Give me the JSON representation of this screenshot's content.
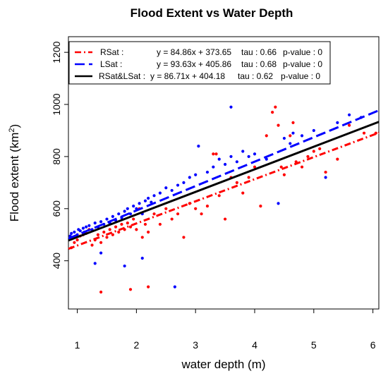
{
  "chart_data": {
    "type": "scatter",
    "title": "Flood Extent vs Water Depth",
    "xlabel": "water depth (m)",
    "ylabel_main": "Flood extent (km",
    "ylabel_sup": "2",
    "ylabel_close": ")",
    "xlim": [
      0.85,
      6.1
    ],
    "ylim": [
      215,
      1260
    ],
    "xticks": [
      1,
      2,
      3,
      4,
      5,
      6
    ],
    "yticks": [
      400,
      600,
      800,
      1000,
      1200
    ],
    "grid": false,
    "legend_position": "top-left",
    "series": [
      {
        "name": "RSat :",
        "color": "#ff0000",
        "line_style": "dash-dot",
        "equation": "y = 84.86x + 373.65",
        "tau": "tau : 0.66",
        "pvalue": "p-value : 0",
        "slope": 84.86,
        "intercept": 373.65,
        "points": [
          [
            0.9,
            450
          ],
          [
            0.95,
            470
          ],
          [
            1.0,
            480
          ],
          [
            1.05,
            495
          ],
          [
            1.1,
            500
          ],
          [
            1.15,
            505
          ],
          [
            1.2,
            520
          ],
          [
            1.25,
            460
          ],
          [
            1.3,
            480
          ],
          [
            1.35,
            500
          ],
          [
            1.4,
            470
          ],
          [
            1.4,
            280
          ],
          [
            1.45,
            510
          ],
          [
            1.5,
            490
          ],
          [
            1.55,
            520
          ],
          [
            1.6,
            500
          ],
          [
            1.65,
            530
          ],
          [
            1.7,
            510
          ],
          [
            1.75,
            540
          ],
          [
            1.8,
            520
          ],
          [
            1.85,
            545
          ],
          [
            1.9,
            290
          ],
          [
            1.9,
            530
          ],
          [
            1.95,
            560
          ],
          [
            2.0,
            520
          ],
          [
            2.05,
            600
          ],
          [
            2.1,
            490
          ],
          [
            2.15,
            540
          ],
          [
            2.2,
            300
          ],
          [
            2.2,
            510
          ],
          [
            2.3,
            580
          ],
          [
            2.4,
            540
          ],
          [
            2.5,
            600
          ],
          [
            2.6,
            560
          ],
          [
            2.7,
            580
          ],
          [
            2.8,
            490
          ],
          [
            2.9,
            620
          ],
          [
            3.0,
            600
          ],
          [
            3.1,
            580
          ],
          [
            3.2,
            610
          ],
          [
            3.3,
            810
          ],
          [
            3.35,
            810
          ],
          [
            3.4,
            650
          ],
          [
            3.5,
            560
          ],
          [
            3.6,
            720
          ],
          [
            3.7,
            700
          ],
          [
            3.8,
            660
          ],
          [
            3.9,
            720
          ],
          [
            4.0,
            760
          ],
          [
            4.1,
            610
          ],
          [
            4.2,
            880
          ],
          [
            4.3,
            970
          ],
          [
            4.35,
            990
          ],
          [
            4.4,
            920
          ],
          [
            4.45,
            760
          ],
          [
            4.5,
            730
          ],
          [
            4.6,
            880
          ],
          [
            4.65,
            930
          ],
          [
            4.7,
            780
          ],
          [
            4.8,
            760
          ],
          [
            4.9,
            800
          ],
          [
            5.0,
            820
          ],
          [
            5.1,
            830
          ],
          [
            5.2,
            740
          ],
          [
            5.4,
            790
          ],
          [
            5.6,
            920
          ],
          [
            5.85,
            890
          ],
          [
            6.05,
            890
          ]
        ]
      },
      {
        "name": "LSat :",
        "color": "#0000ff",
        "line_style": "dashed",
        "equation": "y = 93.63x + 405.86",
        "tau": "tau : 0.68",
        "pvalue": "p-value : 0",
        "slope": 93.63,
        "intercept": 405.86,
        "points": [
          [
            0.88,
            495
          ],
          [
            0.9,
            505
          ],
          [
            0.95,
            510
          ],
          [
            1.0,
            500
          ],
          [
            1.02,
            520
          ],
          [
            1.05,
            515
          ],
          [
            1.1,
            525
          ],
          [
            1.12,
            510
          ],
          [
            1.15,
            530
          ],
          [
            1.2,
            535
          ],
          [
            1.25,
            520
          ],
          [
            1.3,
            545
          ],
          [
            1.35,
            530
          ],
          [
            1.4,
            550
          ],
          [
            1.45,
            540
          ],
          [
            1.5,
            560
          ],
          [
            1.55,
            545
          ],
          [
            1.6,
            570
          ],
          [
            1.65,
            555
          ],
          [
            1.7,
            580
          ],
          [
            1.75,
            565
          ],
          [
            1.8,
            590
          ],
          [
            1.85,
            600
          ],
          [
            1.9,
            580
          ],
          [
            1.95,
            610
          ],
          [
            2.0,
            600
          ],
          [
            2.05,
            620
          ],
          [
            2.1,
            580
          ],
          [
            2.15,
            630
          ],
          [
            2.2,
            640
          ],
          [
            2.25,
            625
          ],
          [
            2.3,
            650
          ],
          [
            2.4,
            660
          ],
          [
            2.5,
            680
          ],
          [
            2.6,
            670
          ],
          [
            2.7,
            690
          ],
          [
            2.8,
            700
          ],
          [
            2.9,
            720
          ],
          [
            3.0,
            730
          ],
          [
            3.05,
            840
          ],
          [
            3.2,
            740
          ],
          [
            3.3,
            760
          ],
          [
            3.4,
            790
          ],
          [
            3.5,
            770
          ],
          [
            3.6,
            800
          ],
          [
            3.7,
            780
          ],
          [
            3.8,
            820
          ],
          [
            3.9,
            800
          ],
          [
            4.0,
            810
          ],
          [
            4.2,
            790
          ],
          [
            4.4,
            620
          ],
          [
            4.5,
            870
          ],
          [
            4.6,
            850
          ],
          [
            4.65,
            890
          ],
          [
            4.8,
            880
          ],
          [
            5.0,
            900
          ],
          [
            5.2,
            720
          ],
          [
            5.4,
            930
          ],
          [
            5.6,
            960
          ],
          [
            5.8,
            950
          ],
          [
            1.3,
            390
          ],
          [
            1.8,
            380
          ],
          [
            2.1,
            410
          ],
          [
            2.65,
            300
          ],
          [
            3.6,
            990
          ],
          [
            1.4,
            430
          ]
        ]
      },
      {
        "name": "RSat&LSat :",
        "color": "#000000",
        "line_style": "solid",
        "equation": "y = 86.71x + 404.18",
        "tau": "tau : 0.62",
        "pvalue": "p-value : 0",
        "slope": 86.71,
        "intercept": 404.18,
        "points": []
      }
    ]
  }
}
